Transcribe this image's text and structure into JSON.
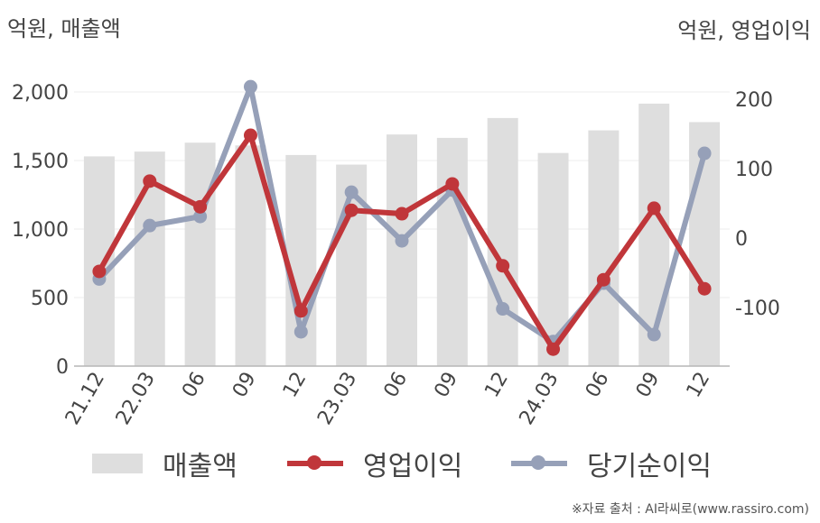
{
  "chart_data": {
    "type": "bar+line",
    "categories": [
      "21.12",
      "22.03",
      "06",
      "09",
      "12",
      "23.03",
      "06",
      "09",
      "12",
      "24.03",
      "06",
      "09",
      "12"
    ],
    "y_left_label": "억원, 매출액",
    "y_right_label": "억원, 영업이익",
    "y_left_range": [
      0,
      2000
    ],
    "y_left_ticks": [
      "0",
      "500",
      "1,000",
      "1,500",
      "2,000"
    ],
    "y_right_ticks": [
      "-100",
      "0",
      "100",
      "200"
    ],
    "grid": true,
    "legend_position": "bottom",
    "series": [
      {
        "name": "매출액",
        "type": "bar",
        "axis": "left",
        "color": "#dedede",
        "values": [
          1530,
          1565,
          1630,
          1610,
          1540,
          1470,
          1690,
          1665,
          1810,
          1555,
          1720,
          1915,
          1780
        ]
      },
      {
        "name": "영업이익",
        "type": "line",
        "axis": "right",
        "color": "#c0363a",
        "values": [
          -48,
          82,
          45,
          148,
          -105,
          40,
          35,
          78,
          -40,
          -160,
          -60,
          43,
          -73
        ]
      },
      {
        "name": "당기순이익",
        "type": "line",
        "axis": "right",
        "color": "#96a0b8",
        "values": [
          -59,
          18,
          31,
          218,
          -135,
          66,
          -4,
          69,
          -102,
          -149,
          -65,
          -139,
          122
        ]
      }
    ]
  },
  "source_note": "※자료 출처 : AI라씨로(www.rassiro.com)"
}
